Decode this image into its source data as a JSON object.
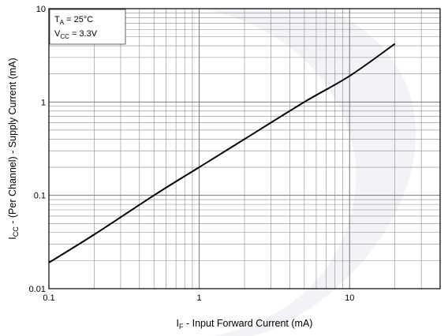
{
  "chart_data": {
    "type": "line",
    "title": "",
    "x_scale": "log",
    "y_scale": "log",
    "xlim": [
      0.1,
      40
    ],
    "ylim": [
      0.01,
      10
    ],
    "grid": true,
    "x_tick_labels": [
      {
        "value": 0.1,
        "label": "0.1"
      },
      {
        "value": 1,
        "label": "1"
      },
      {
        "value": 10,
        "label": "10"
      }
    ],
    "y_tick_labels": [
      {
        "value": 0.01,
        "label": "0.01"
      },
      {
        "value": 0.1,
        "label": "0.1"
      },
      {
        "value": 1,
        "label": "1"
      },
      {
        "value": 10,
        "label": "10"
      }
    ],
    "xlabel": {
      "symbol": "I",
      "sub": "F",
      "text": " - Input Forward Current (mA)"
    },
    "ylabel": {
      "symbol": "I",
      "sub": "CC",
      "text": " - (Per Channel) - Supply Current (mA)"
    },
    "annotations": [
      {
        "symbol": "T",
        "sub": "A",
        "text": " = 25°C"
      },
      {
        "symbol": "V",
        "sub": "CC",
        "text": " = 3.3V"
      }
    ],
    "series": [
      {
        "color": "#000000",
        "x": [
          0.1,
          0.2,
          0.5,
          1,
          2,
          5,
          10,
          20
        ],
        "y": [
          0.019,
          0.038,
          0.1,
          0.2,
          0.4,
          1.0,
          1.9,
          4.2
        ]
      }
    ]
  }
}
